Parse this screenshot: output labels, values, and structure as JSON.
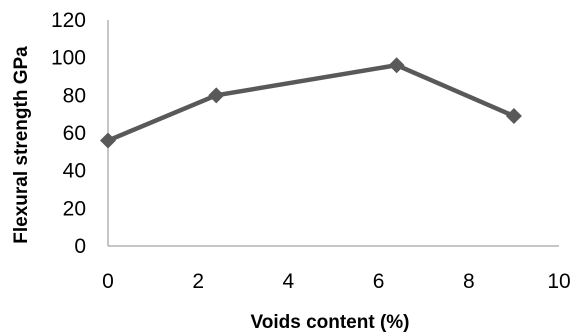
{
  "chart_data": {
    "type": "line",
    "title": "",
    "xlabel": "Voids content (%)",
    "ylabel": "Flexural strength GPa",
    "xlim": [
      0,
      10
    ],
    "ylim": [
      0,
      120
    ],
    "x_ticks": [
      "0",
      "2",
      "4",
      "6",
      "8",
      "10"
    ],
    "y_ticks": [
      "0",
      "20",
      "40",
      "60",
      "80",
      "100",
      "120"
    ],
    "grid": false,
    "legend": "none",
    "series": [
      {
        "color": "#595959",
        "marker": "diamond",
        "points": [
          {
            "x": 0,
            "y": 56
          },
          {
            "x": 2.4,
            "y": 80
          },
          {
            "x": 6.4,
            "y": 96
          },
          {
            "x": 9.0,
            "y": 69
          }
        ]
      }
    ]
  }
}
